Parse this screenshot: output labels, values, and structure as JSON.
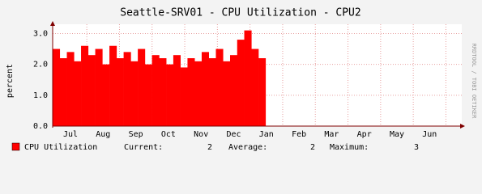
{
  "chart_data": {
    "type": "area",
    "title": "Seattle-SRV01 - CPU Utilization - CPU2",
    "y_label": "percent",
    "side_note": "RRDTOOL / TOBI OETIKER",
    "categories": [
      "Jul",
      "Aug",
      "Sep",
      "Oct",
      "Nov",
      "Dec",
      "Jan",
      "Feb",
      "Mar",
      "Apr",
      "May",
      "Jun"
    ],
    "series": [
      {
        "name": "CPU Utilization",
        "color": "#ff0000",
        "values": [
          [
            2.5,
            2.2,
            2.4,
            2.1,
            2.6
          ],
          [
            2.3,
            2.5,
            2.0,
            2.6,
            2.2
          ],
          [
            2.4,
            2.1,
            2.5,
            2.0,
            2.3
          ],
          [
            2.2,
            2.0,
            2.3,
            1.9,
            2.2
          ],
          [
            2.1,
            2.4,
            2.2,
            2.5,
            2.1
          ],
          [
            2.3,
            2.8,
            3.1,
            2.5,
            2.2
          ],
          null,
          null,
          null,
          null,
          null,
          null
        ]
      }
    ],
    "stats": [
      {
        "label": "Current:",
        "value": 2
      },
      {
        "label": "Average:",
        "value": 2
      },
      {
        "label": "Maximum:",
        "value": 3
      }
    ],
    "ylim": [
      0,
      3.3
    ],
    "yticks": [
      {
        "value": 0,
        "label": "0.0"
      },
      {
        "value": 1,
        "label": "1.0"
      },
      {
        "value": 2,
        "label": "2.0"
      },
      {
        "value": 3,
        "label": "3.0"
      }
    ],
    "grid": true
  }
}
